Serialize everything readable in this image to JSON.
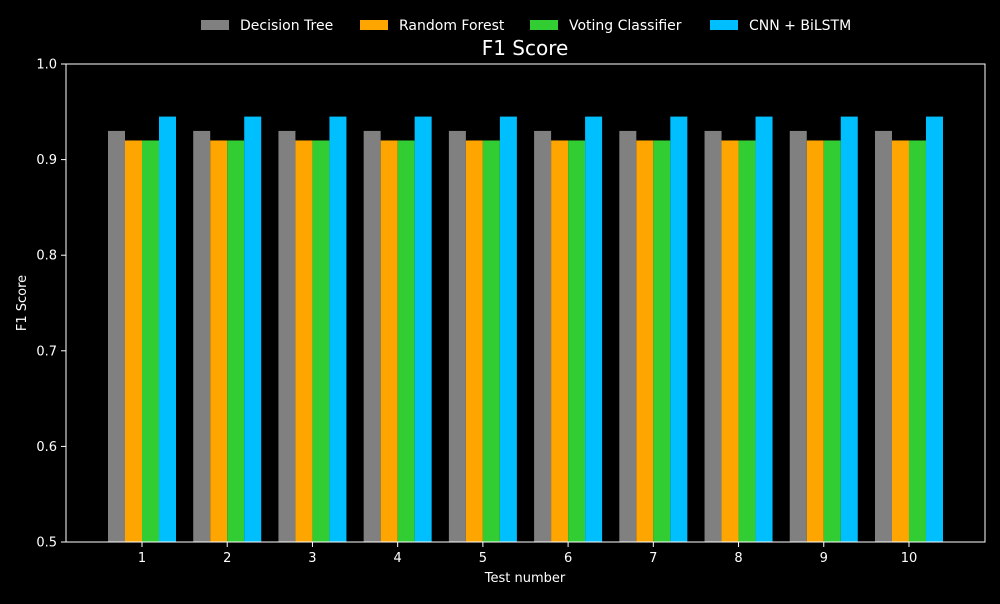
{
  "chart_data": {
    "type": "bar",
    "title": "F1 Score",
    "xlabel": "Test number",
    "ylabel": "F1 Score",
    "categories": [
      "1",
      "2",
      "3",
      "4",
      "5",
      "6",
      "7",
      "8",
      "9",
      "10"
    ],
    "ylim": [
      0.5,
      1.0
    ],
    "yticks": [
      "0.5",
      "0.6",
      "0.7",
      "0.8",
      "0.9",
      "1.0"
    ],
    "legend_position": "top-center",
    "grid": false,
    "series": [
      {
        "name": "Decision Tree",
        "color": "#808080",
        "values": [
          0.93,
          0.93,
          0.93,
          0.93,
          0.93,
          0.93,
          0.93,
          0.93,
          0.93,
          0.93
        ]
      },
      {
        "name": "Random Forest",
        "color": "#ffa500",
        "values": [
          0.92,
          0.92,
          0.92,
          0.92,
          0.92,
          0.92,
          0.92,
          0.92,
          0.92,
          0.92
        ]
      },
      {
        "name": "Voting Classifier",
        "color": "#32cd32",
        "values": [
          0.92,
          0.92,
          0.92,
          0.92,
          0.92,
          0.92,
          0.92,
          0.92,
          0.92,
          0.92
        ]
      },
      {
        "name": "CNN + BiLSTM",
        "color": "#00bfff",
        "values": [
          0.945,
          0.945,
          0.945,
          0.945,
          0.945,
          0.945,
          0.945,
          0.945,
          0.945,
          0.945
        ]
      }
    ]
  },
  "colors": {
    "background": "#000000",
    "foreground": "#ffffff"
  }
}
